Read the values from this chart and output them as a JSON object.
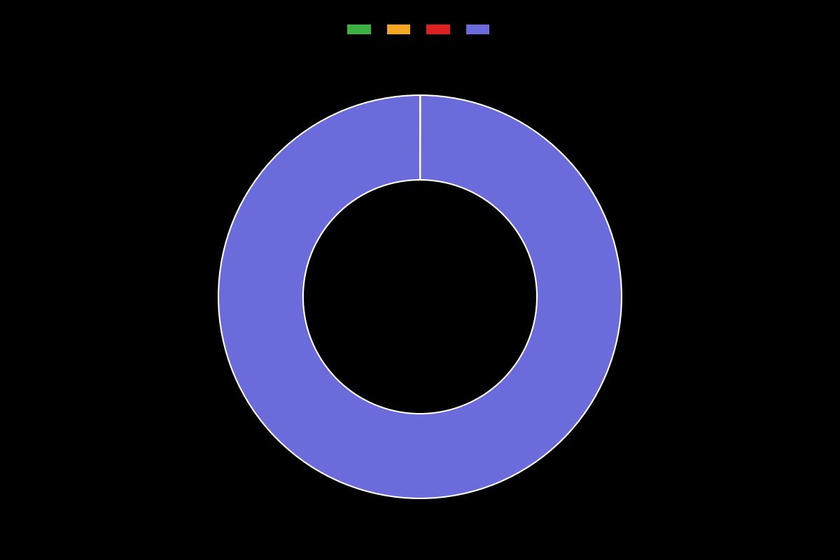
{
  "values": [
    0.01,
    0.01,
    0.01,
    99.97
  ],
  "colors": [
    "#3cb043",
    "#f5a623",
    "#e02020",
    "#6b6bdc"
  ],
  "legend_labels": [
    "",
    "",
    "",
    ""
  ],
  "background_color": "#000000",
  "wedge_edge_color": "#ffffff",
  "wedge_edge_width": 1.5,
  "donut_width": 0.42,
  "figsize": [
    12.0,
    8.0
  ],
  "dpi": 100
}
